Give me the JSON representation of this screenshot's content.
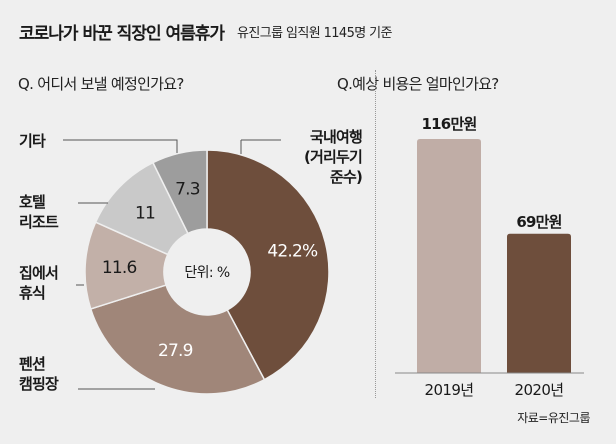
{
  "header": {
    "title": "코로나가 바꾼 직장인 여름휴가",
    "subtitle": "유진그룹 임직원 1145명 기준"
  },
  "source": "자료=유진그룹",
  "chart_data": [
    {
      "type": "pie",
      "variant": "donut",
      "title": "Q. 어디서 보낼 예정인가요?",
      "unit_label": "단위: %",
      "categories": [
        "국내여행\n(거리두기\n준수)",
        "펜션\n캠핑장",
        "집에서\n휴식",
        "호텔\n리조트",
        "기타"
      ],
      "values": [
        42.2,
        27.9,
        11.6,
        11,
        7.3
      ],
      "value_labels": [
        "42.2%",
        "27.9",
        "11.6",
        "11",
        "7.3"
      ],
      "colors": [
        "#6e4e3c",
        "#a08679",
        "#c2b0a8",
        "#c9c9c9",
        "#9d9d9d"
      ],
      "label_colors": [
        "#ffffff",
        "#ffffff",
        "#1a1a1a",
        "#1a1a1a",
        "#1a1a1a"
      ],
      "start_angle": "12 o'clock",
      "direction": "clockwise"
    },
    {
      "type": "bar",
      "title": "Q.예상 비용은 얼마인가요?",
      "categories": [
        "2019년",
        "2020년"
      ],
      "values": [
        116,
        69
      ],
      "value_labels": [
        "116만원",
        "69만원"
      ],
      "unit": "만원",
      "colors": [
        "#c0ada6",
        "#6e4e3c"
      ],
      "ylim": [
        0,
        116
      ]
    }
  ]
}
